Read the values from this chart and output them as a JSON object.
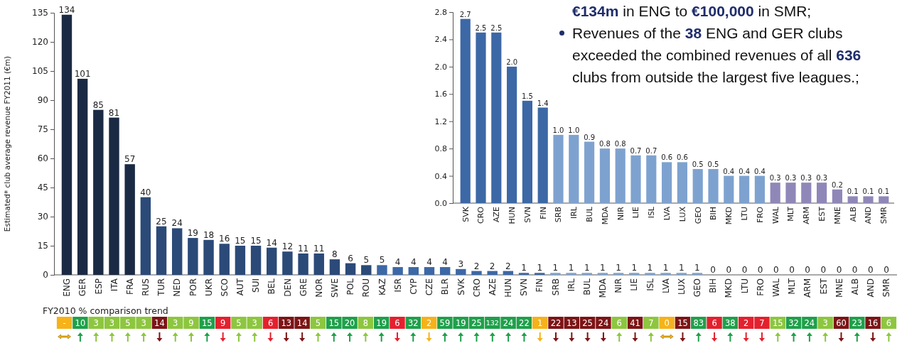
{
  "chart_data": [
    {
      "type": "bar",
      "ylabel": "Estimated* club average revenue FY2011 (€m)",
      "categories": [
        "ENG",
        "GER",
        "ESP",
        "ITA",
        "FRA",
        "RUS",
        "TUR",
        "NED",
        "POR",
        "UKR",
        "SCO",
        "AUT",
        "SUI",
        "BEL",
        "DEN",
        "GRE",
        "NOR",
        "SWE",
        "POL",
        "ROU",
        "KAZ",
        "ISR",
        "CYP",
        "CZE",
        "BLR",
        "SVK",
        "CRO",
        "AZE",
        "HUN",
        "SVN",
        "FIN",
        "SRB",
        "IRL",
        "BUL",
        "MDA",
        "NIR",
        "LIE",
        "ISL",
        "LVA",
        "LUX",
        "GEO",
        "BIH",
        "MKD",
        "LTU",
        "FRO",
        "WAL",
        "MLT",
        "ARM",
        "EST",
        "MNE",
        "ALB",
        "AND",
        "SMR"
      ],
      "values": [
        134,
        101,
        85,
        81,
        57,
        40,
        25,
        24,
        19,
        18,
        16,
        15,
        15,
        14,
        12,
        11,
        11,
        8,
        6,
        5,
        5,
        4,
        4,
        4,
        4,
        3,
        2,
        2,
        2,
        1,
        1,
        1,
        1,
        1,
        1,
        1,
        1,
        1,
        1,
        1,
        1,
        0,
        0,
        0,
        0,
        0,
        0,
        0,
        0,
        0,
        0,
        0,
        0
      ],
      "colors": [
        "#1b2a44",
        "#1b2a44",
        "#1b2a44",
        "#1b2a44",
        "#1b2a44",
        "#2b4a78",
        "#2b4a78",
        "#2b4a78",
        "#2b4a78",
        "#2b4a78",
        "#2b4a78",
        "#2b4a78",
        "#2b4a78",
        "#2b4a78",
        "#2b4a78",
        "#2b4a78",
        "#2b4a78",
        "#2b4a78",
        "#2b4a78",
        "#2b4a78",
        "#3c68a6",
        "#3c68a6",
        "#3c68a6",
        "#3c68a6",
        "#3c68a6",
        "#3c68a6",
        "#3c68a6",
        "#3c68a6",
        "#3c68a6",
        "#3c68a6",
        "#3c68a6",
        "#7ea2cf",
        "#7ea2cf",
        "#7ea2cf",
        "#7ea2cf",
        "#7ea2cf",
        "#7ea2cf",
        "#7ea2cf",
        "#7ea2cf",
        "#7ea2cf",
        "#7ea2cf",
        "#7ea2cf",
        "#7ea2cf",
        "#7ea2cf",
        "#7ea2cf",
        "#8f87b8",
        "#8f87b8",
        "#8f87b8",
        "#8f87b8",
        "#8f87b8",
        "#8f87b8",
        "#8f87b8",
        "#8f87b8"
      ],
      "ylim": [
        0,
        135
      ],
      "yticks": [
        0,
        15,
        30,
        45,
        60,
        75,
        90,
        105,
        120,
        135
      ],
      "data_labels": true,
      "annotations": [
        "€134m in ENG to €100,000 in SMR;",
        "Revenues of the 38 ENG and GER clubs exceeded the combined revenues of all 636 clubs from outside the largest five leagues.;"
      ]
    },
    {
      "type": "bar",
      "categories": [
        "SVK",
        "CRO",
        "AZE",
        "HUN",
        "SVN",
        "FIN",
        "SRB",
        "IRL",
        "BUL",
        "MDA",
        "NIR",
        "LIE",
        "ISL",
        "LVA",
        "LUX",
        "GEO",
        "BIH",
        "MKD",
        "LTU",
        "FRO",
        "WAL",
        "MLT",
        "ARM",
        "EST",
        "MNE",
        "ALB",
        "AND",
        "SMR"
      ],
      "values": [
        2.7,
        2.5,
        2.5,
        2.0,
        1.5,
        1.4,
        1.0,
        1.0,
        0.9,
        0.8,
        0.8,
        0.7,
        0.7,
        0.6,
        0.6,
        0.5,
        0.5,
        0.4,
        0.4,
        0.4,
        0.3,
        0.3,
        0.3,
        0.3,
        0.2,
        0.1,
        0.1,
        0.1
      ],
      "value_labels": [
        "2.7",
        "2.5",
        "2.5",
        "2.0",
        "1.5",
        "1.4",
        "1.0",
        "1.0",
        "0.9",
        "0.8",
        "0.8",
        "0.7",
        "0.7",
        "0.6",
        "0.6",
        "0.5",
        "0.5",
        "0.4",
        "0.4",
        "0.4",
        "0.3",
        "0.3",
        "0.3",
        "0.3",
        "0.2",
        "0.1",
        "0.1",
        "0.1"
      ],
      "colors": [
        "#3c68a6",
        "#3c68a6",
        "#3c68a6",
        "#3c68a6",
        "#3c68a6",
        "#3c68a6",
        "#7ea2cf",
        "#7ea2cf",
        "#7ea2cf",
        "#7ea2cf",
        "#7ea2cf",
        "#7ea2cf",
        "#7ea2cf",
        "#7ea2cf",
        "#7ea2cf",
        "#7ea2cf",
        "#7ea2cf",
        "#7ea2cf",
        "#7ea2cf",
        "#7ea2cf",
        "#8f87b8",
        "#8f87b8",
        "#8f87b8",
        "#8f87b8",
        "#8f87b8",
        "#8f87b8",
        "#8f87b8",
        "#8f87b8"
      ],
      "ylim": [
        0,
        2.8
      ],
      "yticks": [
        {
          "value": 0,
          "label": "0.0"
        },
        0.4,
        0.8,
        1.2,
        1.6,
        {
          "value": 2,
          "label": "2.0"
        },
        2.4,
        2.8
      ]
    },
    {
      "type": "other",
      "title": "FY2010 % comparison trend",
      "value_labels": [
        "-",
        "10",
        "3",
        "3",
        "5",
        "3",
        "14",
        "3",
        "9",
        "15",
        "9",
        "5",
        "3",
        "6",
        "13",
        "14",
        "5",
        "15",
        "20",
        "8",
        "19",
        "6",
        "32",
        "2",
        "59",
        "19",
        "25",
        "132",
        "24",
        "22",
        "1",
        "22",
        "13",
        "25",
        "24",
        "6",
        "41",
        "7",
        "0",
        "15",
        "83",
        "6",
        "38",
        "2",
        "7",
        "15",
        "32",
        "24",
        "3",
        "60",
        "23",
        "16",
        "6"
      ],
      "colors": [
        "#f6b219",
        "#1fa04b",
        "#8dc63f",
        "#8dc63f",
        "#8dc63f",
        "#8dc63f",
        "#7d1416",
        "#8dc63f",
        "#8dc63f",
        "#1fa04b",
        "#e5202e",
        "#8dc63f",
        "#8dc63f",
        "#e5202e",
        "#7d1416",
        "#7d1416",
        "#8dc63f",
        "#1fa04b",
        "#1fa04b",
        "#8dc63f",
        "#1fa04b",
        "#e5202e",
        "#1fa04b",
        "#f6b219",
        "#1fa04b",
        "#1fa04b",
        "#1fa04b",
        "#1fa04b",
        "#1fa04b",
        "#1fa04b",
        "#f6b219",
        "#7d1416",
        "#7d1416",
        "#7d1416",
        "#7d1416",
        "#8dc63f",
        "#7d1416",
        "#8dc63f",
        "#f6b219",
        "#7d1416",
        "#1fa04b",
        "#e5202e",
        "#1fa04b",
        "#e5202e",
        "#e5202e",
        "#8dc63f",
        "#1fa04b",
        "#1fa04b",
        "#8dc63f",
        "#7d1416",
        "#1fa04b",
        "#7d1416",
        "#8dc63f"
      ]
    }
  ]
}
